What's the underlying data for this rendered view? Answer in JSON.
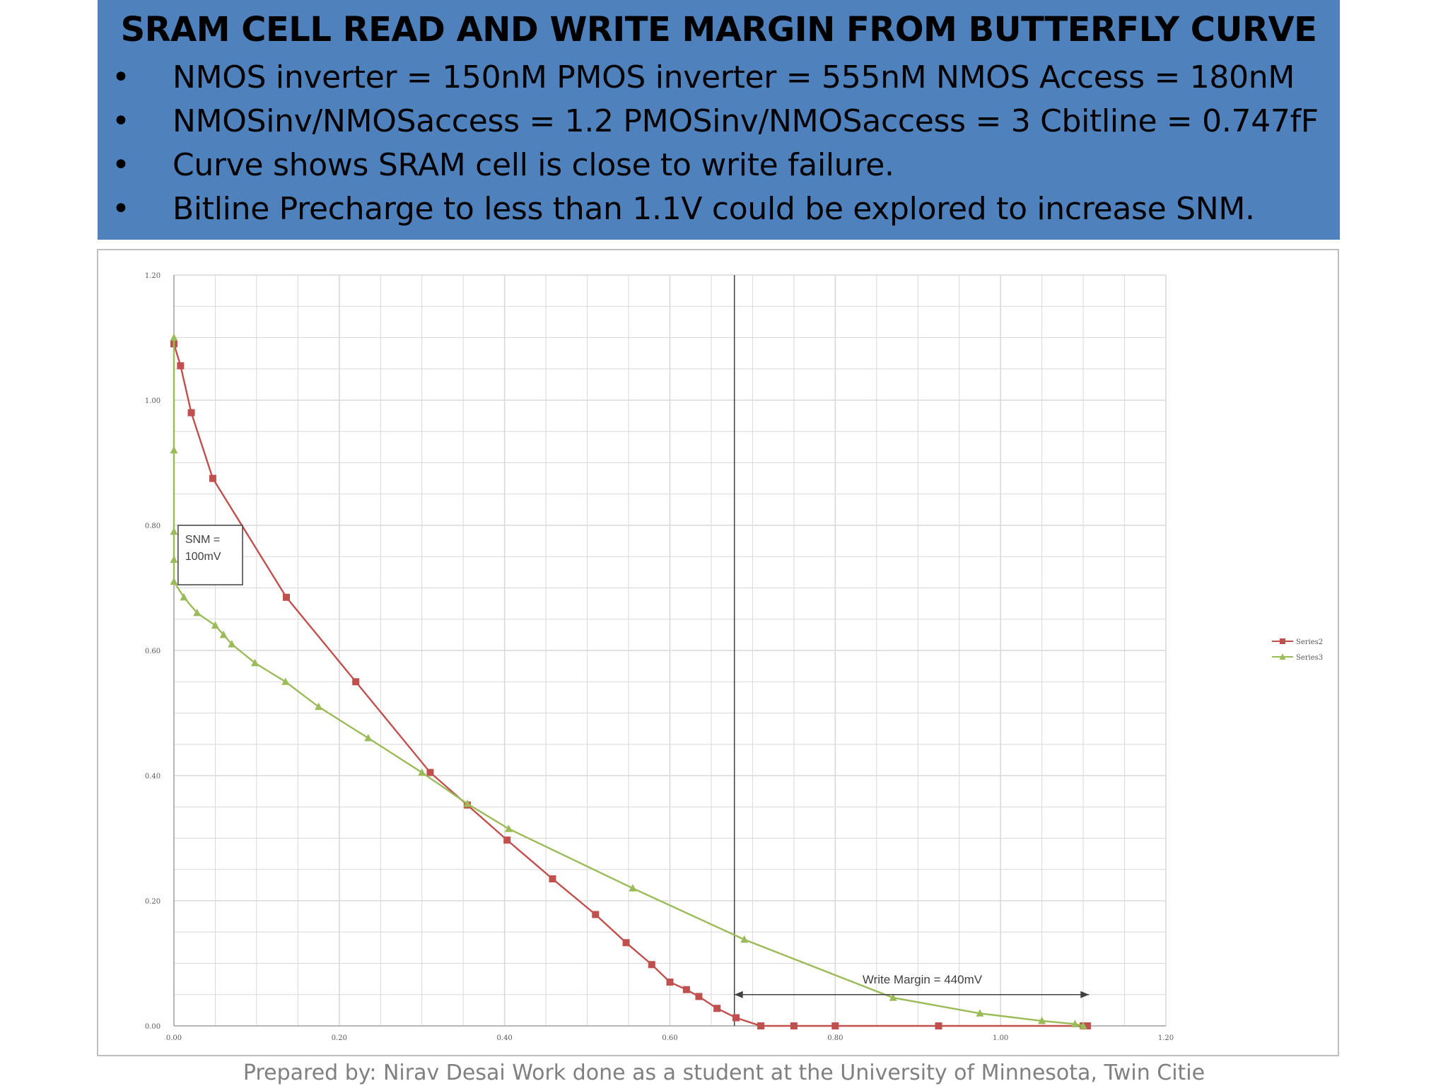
{
  "slide": {
    "title": "SRAM CELL READ AND WRITE MARGIN FROM BUTTERFLY CURVE",
    "bullets": [
      "NMOS inverter = 150nM PMOS inverter = 555nM NMOS Access = 180nM",
      "NMOSinv/NMOSaccess = 1.2 PMOSinv/NMOSaccess = 3 Cbitline = 0.747fF",
      "Curve shows SRAM cell is close to write failure.",
      "Bitline Precharge to less than 1.1V could be explored to increase SNM."
    ],
    "bullet_glyph": "•",
    "footer": "Prepared by: Nirav Desai Work done as a student at the University of Minnesota, Twin Citie"
  },
  "colors": {
    "header_bg": "#4f81bd",
    "series2": "#c0504d",
    "series3": "#9bbb59",
    "grid": "#d9d9d9",
    "axis_text": "#595959",
    "annotation": "#404040"
  },
  "chart_data": {
    "type": "scatter",
    "title": "",
    "xlabel": "",
    "ylabel": "",
    "xlim": [
      0,
      1.2
    ],
    "ylim": [
      0,
      1.2
    ],
    "x_ticks": [
      "0.00",
      "0.20",
      "0.40",
      "0.60",
      "0.80",
      "1.00",
      "1.20"
    ],
    "y_ticks": [
      "0.00",
      "0.20",
      "0.40",
      "0.60",
      "0.80",
      "1.00",
      "1.20"
    ],
    "grid": true,
    "legend_position": "right",
    "series": [
      {
        "name": "Series2",
        "marker": "square",
        "x": [
          0.0,
          0.008,
          0.021,
          0.047,
          0.136,
          0.22,
          0.31,
          0.355,
          0.403,
          0.458,
          0.51,
          0.547,
          0.578,
          0.6,
          0.62,
          0.635,
          0.657,
          0.68,
          0.71,
          0.75,
          0.8,
          0.925,
          1.1,
          1.105
        ],
        "y": [
          1.09,
          1.055,
          0.98,
          0.875,
          0.685,
          0.55,
          0.405,
          0.353,
          0.297,
          0.235,
          0.178,
          0.133,
          0.098,
          0.07,
          0.058,
          0.047,
          0.028,
          0.013,
          0.0,
          0.0,
          0.0,
          0.0,
          0.0,
          0.0
        ]
      },
      {
        "name": "Series3",
        "marker": "triangle",
        "x": [
          0.0,
          0.0,
          0.0,
          0.0,
          0.0,
          0.012,
          0.028,
          0.05,
          0.06,
          0.07,
          0.098,
          0.135,
          0.175,
          0.235,
          0.3,
          0.355,
          0.405,
          0.555,
          0.69,
          0.87,
          0.975,
          1.05,
          1.09,
          1.1
        ],
        "y": [
          1.1,
          0.92,
          0.79,
          0.745,
          0.71,
          0.685,
          0.66,
          0.64,
          0.625,
          0.61,
          0.58,
          0.55,
          0.51,
          0.46,
          0.405,
          0.355,
          0.315,
          0.22,
          0.138,
          0.045,
          0.02,
          0.008,
          0.003,
          0.0
        ]
      }
    ],
    "annotations": {
      "snm_box": {
        "lines": [
          "SNM =",
          "100mV"
        ],
        "x0": 0.005,
        "x1": 0.083,
        "y0": 0.705,
        "y1": 0.8
      },
      "write_margin": {
        "text": "Write Margin = 440mV",
        "x_start": 0.678,
        "x_end": 1.107,
        "y": 0.05
      },
      "vertical_line_x": 0.678
    }
  }
}
